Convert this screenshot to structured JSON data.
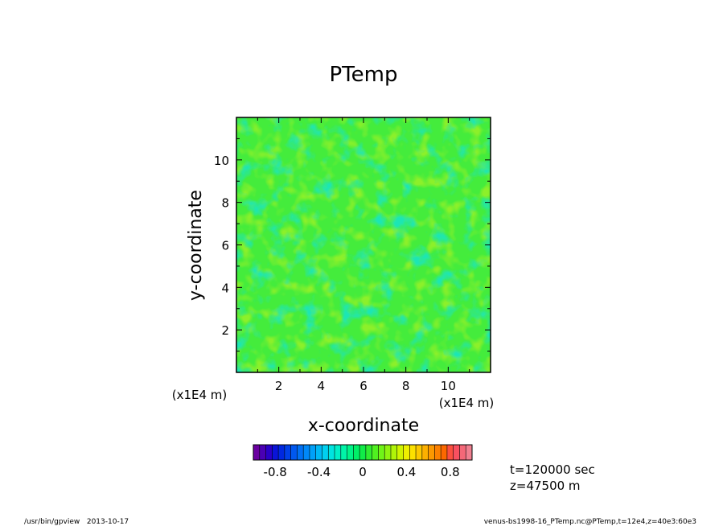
{
  "chart_data": {
    "type": "heatmap",
    "title": "PTemp",
    "xlabel": "x-coordinate",
    "ylabel": "y-coordinate",
    "x_unit": "(x1E4 m)",
    "y_unit": "(x1E4 m)",
    "xlim": [
      0,
      12
    ],
    "ylim": [
      0,
      12
    ],
    "x_ticks": [
      "2",
      "4",
      "6",
      "8",
      "10"
    ],
    "y_ticks": [
      "2",
      "4",
      "6",
      "8",
      "10"
    ],
    "x_tick_values": [
      2,
      4,
      6,
      8,
      10
    ],
    "y_tick_values": [
      2,
      4,
      6,
      8,
      10
    ],
    "colorbar": {
      "range": [
        -1,
        1
      ],
      "tick_labels": [
        "-0.8",
        "-0.4",
        "0",
        "0.4",
        "0.8"
      ],
      "tick_values": [
        -0.8,
        -0.4,
        0,
        0.4,
        0.8
      ],
      "colors": [
        "#6a00a0",
        "#4a00b4",
        "#2a00c8",
        "#0a14d8",
        "#0028e0",
        "#0040e8",
        "#0058f0",
        "#0070f4",
        "#0088f8",
        "#00a0f8",
        "#00b8f4",
        "#00d0f0",
        "#00e4e0",
        "#00f0c8",
        "#00f4a8",
        "#00f488",
        "#00f068",
        "#10ec48",
        "#30ec30",
        "#50f020",
        "#70f418",
        "#90f410",
        "#b0f408",
        "#d0f400",
        "#eef000",
        "#fce000",
        "#fcc800",
        "#fcb000",
        "#fc9800",
        "#fc8000",
        "#fc6800",
        "#fc5040",
        "#f85060",
        "#f46878",
        "#f08090"
      ]
    },
    "field_colors": {
      "base": "#44ec3c",
      "warm": "#8cf02a",
      "cool": "#1fe6b4",
      "cold": "#00d8e8"
    },
    "annotations": {
      "time": "t=120000 sec",
      "height": "z=47500 m"
    }
  },
  "footer": {
    "left": "/usr/bin/gpview   2013-10-17",
    "right": "venus-bs1998-16_PTemp.nc@PTemp,t=12e4,z=40e3:60e3"
  }
}
